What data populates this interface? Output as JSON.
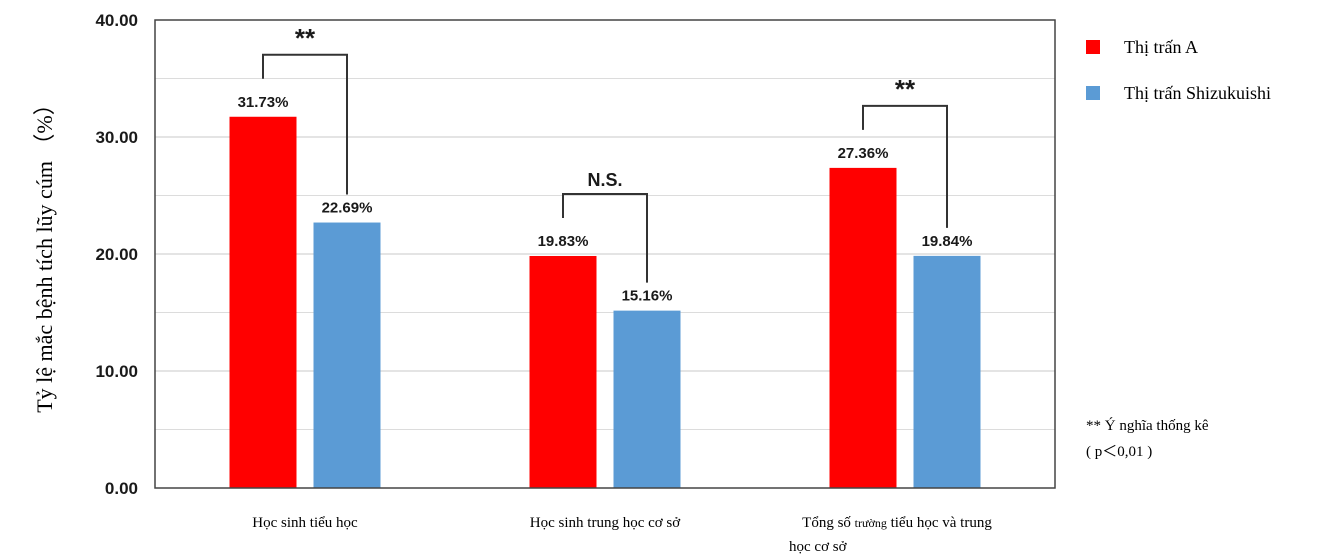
{
  "chart_data": {
    "type": "bar",
    "categories": [
      "Học sinh tiểu học",
      "Học sinh trung học cơ sở",
      "Tổng số trường tiểu học và trung học cơ sở"
    ],
    "category_label_lines": [
      [
        {
          "text": "Học sinh tiểu học",
          "size": "normal"
        }
      ],
      [
        {
          "text": "Học sinh trung học cơ sở",
          "size": "normal"
        }
      ],
      [
        {
          "text": "Tổng số ",
          "size": "normal"
        },
        {
          "text": "trường",
          "size": "small"
        },
        {
          "text": " tiểu học và trung",
          "size": "normal"
        },
        {
          "text": "|",
          "size": "break"
        },
        {
          "text": "học cơ sở",
          "size": "normal"
        }
      ]
    ],
    "series": [
      {
        "name": "Thị trấn A",
        "color": "#ff0000",
        "values": [
          31.73,
          19.83,
          27.36
        ],
        "labels": [
          "31.73%",
          "19.83%",
          "27.36%"
        ]
      },
      {
        "name": "Thị trấn Shizukuishi",
        "color": "#5b9bd5",
        "values": [
          22.69,
          15.16,
          19.84
        ],
        "labels": [
          "22.69%",
          "15.16%",
          "19.84%"
        ]
      }
    ],
    "ylabel": "Tỷ lệ mắc bệnh tích lũy cúm （%）",
    "ylim": [
      0,
      40
    ],
    "yticks": [
      "0.00",
      "10.00",
      "20.00",
      "30.00",
      "40.00"
    ],
    "grid": true,
    "legend_position": "top-right",
    "significance": [
      "**",
      "N.S.",
      "**"
    ],
    "note_lines": [
      "** Ý nghĩa thống kê",
      "( p＜0,01 )"
    ]
  }
}
